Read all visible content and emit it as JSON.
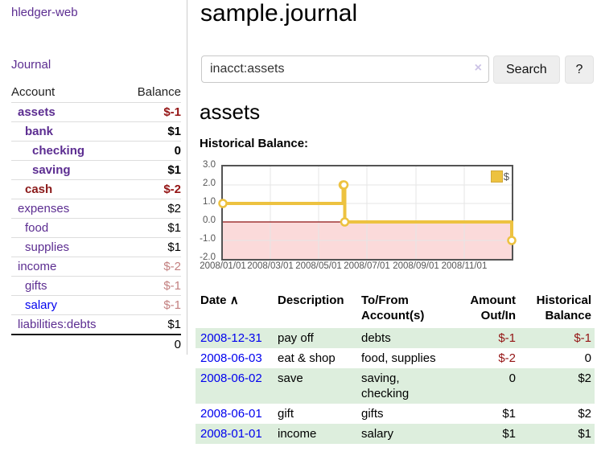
{
  "app": {
    "brand": "hledger-web",
    "nav": {
      "journal": "Journal"
    }
  },
  "sidebar": {
    "headers": {
      "account": "Account",
      "balance": "Balance"
    },
    "accounts": [
      {
        "name": "assets",
        "balance": "$-1"
      },
      {
        "name": "bank",
        "balance": "$1"
      },
      {
        "name": "checking",
        "balance": "0"
      },
      {
        "name": "saving",
        "balance": "$1"
      },
      {
        "name": "cash",
        "balance": "$-2"
      },
      {
        "name": "expenses",
        "balance": "$2"
      },
      {
        "name": "food",
        "balance": "$1"
      },
      {
        "name": "supplies",
        "balance": "$1"
      },
      {
        "name": "income",
        "balance": "$-2"
      },
      {
        "name": "gifts",
        "balance": "$-1"
      },
      {
        "name": "salary",
        "balance": "$-1"
      },
      {
        "name": "liabilities:debts",
        "balance": "$1"
      }
    ],
    "total": "0"
  },
  "header": {
    "title": "sample.journal"
  },
  "search": {
    "value": "inacct:assets",
    "clear_icon": "×",
    "button_label": "Search",
    "help_label": "?"
  },
  "account_page": {
    "title": "assets",
    "chart_label": "Historical Balance:"
  },
  "chart_data": {
    "type": "line",
    "step": true,
    "series": [
      {
        "name": "$",
        "color": "#edc240",
        "points": [
          [
            "2008-01-01",
            1
          ],
          [
            "2008-06-01",
            2
          ],
          [
            "2008-06-02",
            2
          ],
          [
            "2008-06-03",
            0
          ],
          [
            "2008-12-31",
            -1
          ]
        ]
      }
    ],
    "xlim": [
      "2008-01-01",
      "2008-12-31"
    ],
    "ylim": [
      -2,
      3
    ],
    "yticks": [
      "3.0",
      "2.0",
      "1.0",
      "0.0",
      "-1.0",
      "-2.0"
    ],
    "xticks": [
      "2008/01/01",
      "2008/03/01",
      "2008/05/01",
      "2008/07/01",
      "2008/09/01",
      "2008/11/01"
    ],
    "legend_position": "top-right",
    "grid": true,
    "negative_region_color": "#fbdada",
    "zero_line_color": "#8e1111",
    "grid_color": "#e6e6e6",
    "border_color": "#545454"
  },
  "register": {
    "headers": {
      "date": "Date",
      "sort_indicator": "∧",
      "description": "Description",
      "account": "To/From Account(s)",
      "amount": "Amount Out/In",
      "balance": "Historical Balance"
    },
    "rows": [
      {
        "date": "2008-12-31",
        "description": "pay off",
        "accounts": "debts",
        "amount": "$-1",
        "balance": "$-1"
      },
      {
        "date": "2008-06-03",
        "description": "eat & shop",
        "accounts": "food, supplies",
        "amount": "$-2",
        "balance": "0"
      },
      {
        "date": "2008-06-02",
        "description": "save",
        "accounts": "saving, checking",
        "amount": "0",
        "balance": "$2"
      },
      {
        "date": "2008-06-01",
        "description": "gift",
        "accounts": "gifts",
        "amount": "$1",
        "balance": "$2"
      },
      {
        "date": "2008-01-01",
        "description": "income",
        "accounts": "salary",
        "amount": "$1",
        "balance": "$1"
      }
    ]
  }
}
